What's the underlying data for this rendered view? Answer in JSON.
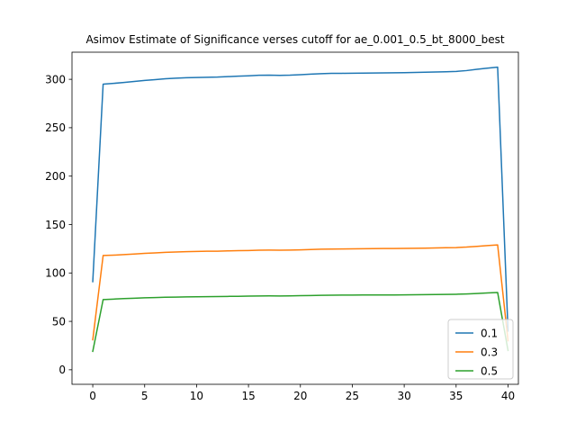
{
  "chart_data": {
    "type": "line",
    "title": "Asimov Estimate of Significance verses cutoff for ae_0.001_0.5_bt_8000_best",
    "xlabel": "",
    "ylabel": "",
    "xlim": [
      -2,
      41
    ],
    "ylim": [
      -15,
      328
    ],
    "xticks": [
      0,
      5,
      10,
      15,
      20,
      25,
      30,
      35,
      40
    ],
    "yticks": [
      0,
      50,
      100,
      150,
      200,
      250,
      300
    ],
    "grid": false,
    "legend_position": "lower-right",
    "x": [
      0,
      1,
      2,
      3,
      4,
      5,
      6,
      7,
      8,
      9,
      10,
      11,
      12,
      13,
      14,
      15,
      16,
      17,
      18,
      19,
      20,
      21,
      22,
      23,
      24,
      25,
      26,
      27,
      28,
      29,
      30,
      31,
      32,
      33,
      34,
      35,
      36,
      37,
      38,
      39,
      40
    ],
    "series": [
      {
        "name": "0.1",
        "color": "#1f77b4",
        "values": [
          91,
          295,
          295.8,
          296.8,
          297.8,
          298.8,
          299.6,
          300.6,
          301.2,
          301.6,
          301.9,
          302.1,
          302.3,
          302.8,
          303.2,
          303.6,
          304.2,
          304.3,
          304.1,
          304.3,
          304.8,
          305.3,
          305.8,
          306.1,
          306.2,
          306.3,
          306.4,
          306.5,
          306.6,
          306.7,
          306.9,
          307.1,
          307.3,
          307.5,
          307.8,
          308.1,
          309,
          310.3,
          311.5,
          312.5,
          40
        ]
      },
      {
        "name": "0.3",
        "color": "#ff7f0e",
        "values": [
          31,
          118,
          118.4,
          119,
          119.6,
          120.2,
          120.7,
          121.3,
          121.7,
          122,
          122.2,
          122.4,
          122.5,
          122.8,
          123,
          123.2,
          123.5,
          123.6,
          123.5,
          123.6,
          123.9,
          124.2,
          124.5,
          124.7,
          124.8,
          124.9,
          125,
          125.1,
          125.2,
          125.3,
          125.4,
          125.5,
          125.6,
          125.8,
          126,
          126.2,
          126.7,
          127.5,
          128.3,
          129,
          30
        ]
      },
      {
        "name": "0.5",
        "color": "#2ca02c",
        "values": [
          19,
          72.5,
          73,
          73.5,
          73.9,
          74.3,
          74.6,
          74.9,
          75.1,
          75.3,
          75.4,
          75.5,
          75.6,
          75.8,
          75.9,
          76.1,
          76.2,
          76.3,
          76.2,
          76.3,
          76.5,
          76.7,
          76.9,
          77,
          77.1,
          77.1,
          77.2,
          77.2,
          77.3,
          77.3,
          77.4,
          77.5,
          77.6,
          77.7,
          77.8,
          78,
          78.3,
          78.8,
          79.3,
          79.8,
          20
        ]
      }
    ]
  }
}
